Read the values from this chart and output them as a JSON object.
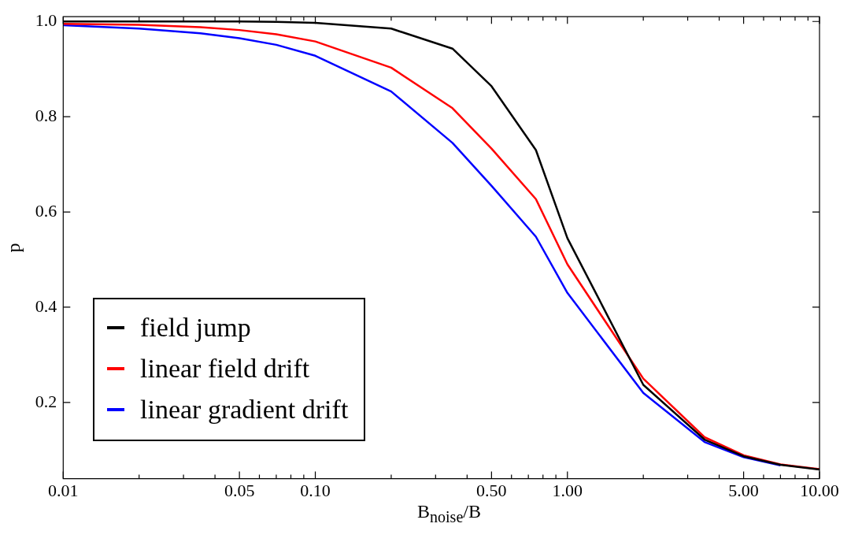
{
  "chart_data": {
    "type": "line",
    "xlabel": "B$_{noise}$/B",
    "ylabel": "p",
    "log": "x",
    "xlim": [
      0.01,
      10
    ],
    "ylim": [
      0.04,
      1.01
    ],
    "xticks": [
      {
        "value": 0.01,
        "label": "0.01"
      },
      {
        "value": 0.02,
        "label": null
      },
      {
        "value": 0.03,
        "label": null
      },
      {
        "value": 0.04,
        "label": null
      },
      {
        "value": 0.05,
        "label": "0.05"
      },
      {
        "value": 0.06,
        "label": null
      },
      {
        "value": 0.07,
        "label": null
      },
      {
        "value": 0.08,
        "label": null
      },
      {
        "value": 0.09,
        "label": null
      },
      {
        "value": 0.1,
        "label": "0.10"
      },
      {
        "value": 0.2,
        "label": null
      },
      {
        "value": 0.3,
        "label": null
      },
      {
        "value": 0.4,
        "label": null
      },
      {
        "value": 0.5,
        "label": "0.50"
      },
      {
        "value": 0.6,
        "label": null
      },
      {
        "value": 0.7,
        "label": null
      },
      {
        "value": 0.8,
        "label": null
      },
      {
        "value": 0.9,
        "label": null
      },
      {
        "value": 1,
        "label": "1.00"
      },
      {
        "value": 2,
        "label": null
      },
      {
        "value": 3,
        "label": null
      },
      {
        "value": 4,
        "label": null
      },
      {
        "value": 5,
        "label": "5.00"
      },
      {
        "value": 6,
        "label": null
      },
      {
        "value": 7,
        "label": null
      },
      {
        "value": 8,
        "label": null
      },
      {
        "value": 9,
        "label": null
      },
      {
        "value": 10,
        "label": "10.00"
      }
    ],
    "yticks": [
      0.2,
      0.4,
      0.6,
      0.8,
      {
        "value": 1,
        "label": "1.0"
      }
    ],
    "x": [
      0.01,
      0.02,
      0.035,
      0.05,
      0.07,
      0.1,
      0.2,
      0.35,
      0.5,
      0.75,
      1,
      2,
      3.5,
      5,
      7,
      10
    ],
    "series": [
      {
        "name": "field jump",
        "color": "#000000",
        "values": [
          1.0,
          1.0,
          1.0,
          1.0,
          0.999,
          0.997,
          0.985,
          0.943,
          0.864,
          0.73,
          0.545,
          0.237,
          0.122,
          0.087,
          0.069,
          0.059
        ]
      },
      {
        "name": "linear field drift",
        "color": "#ff0000",
        "values": [
          0.995,
          0.993,
          0.988,
          0.982,
          0.973,
          0.958,
          0.903,
          0.818,
          0.733,
          0.627,
          0.49,
          0.25,
          0.127,
          0.089,
          0.07,
          0.06
        ]
      },
      {
        "name": "linear gradient drift",
        "color": "#0000ff",
        "values": [
          0.992,
          0.985,
          0.975,
          0.965,
          0.951,
          0.928,
          0.853,
          0.745,
          0.655,
          0.548,
          0.43,
          0.22,
          0.117,
          0.085,
          0.068,
          null
        ]
      }
    ],
    "legend": "bottom left",
    "grid": false,
    "marker": "none"
  }
}
